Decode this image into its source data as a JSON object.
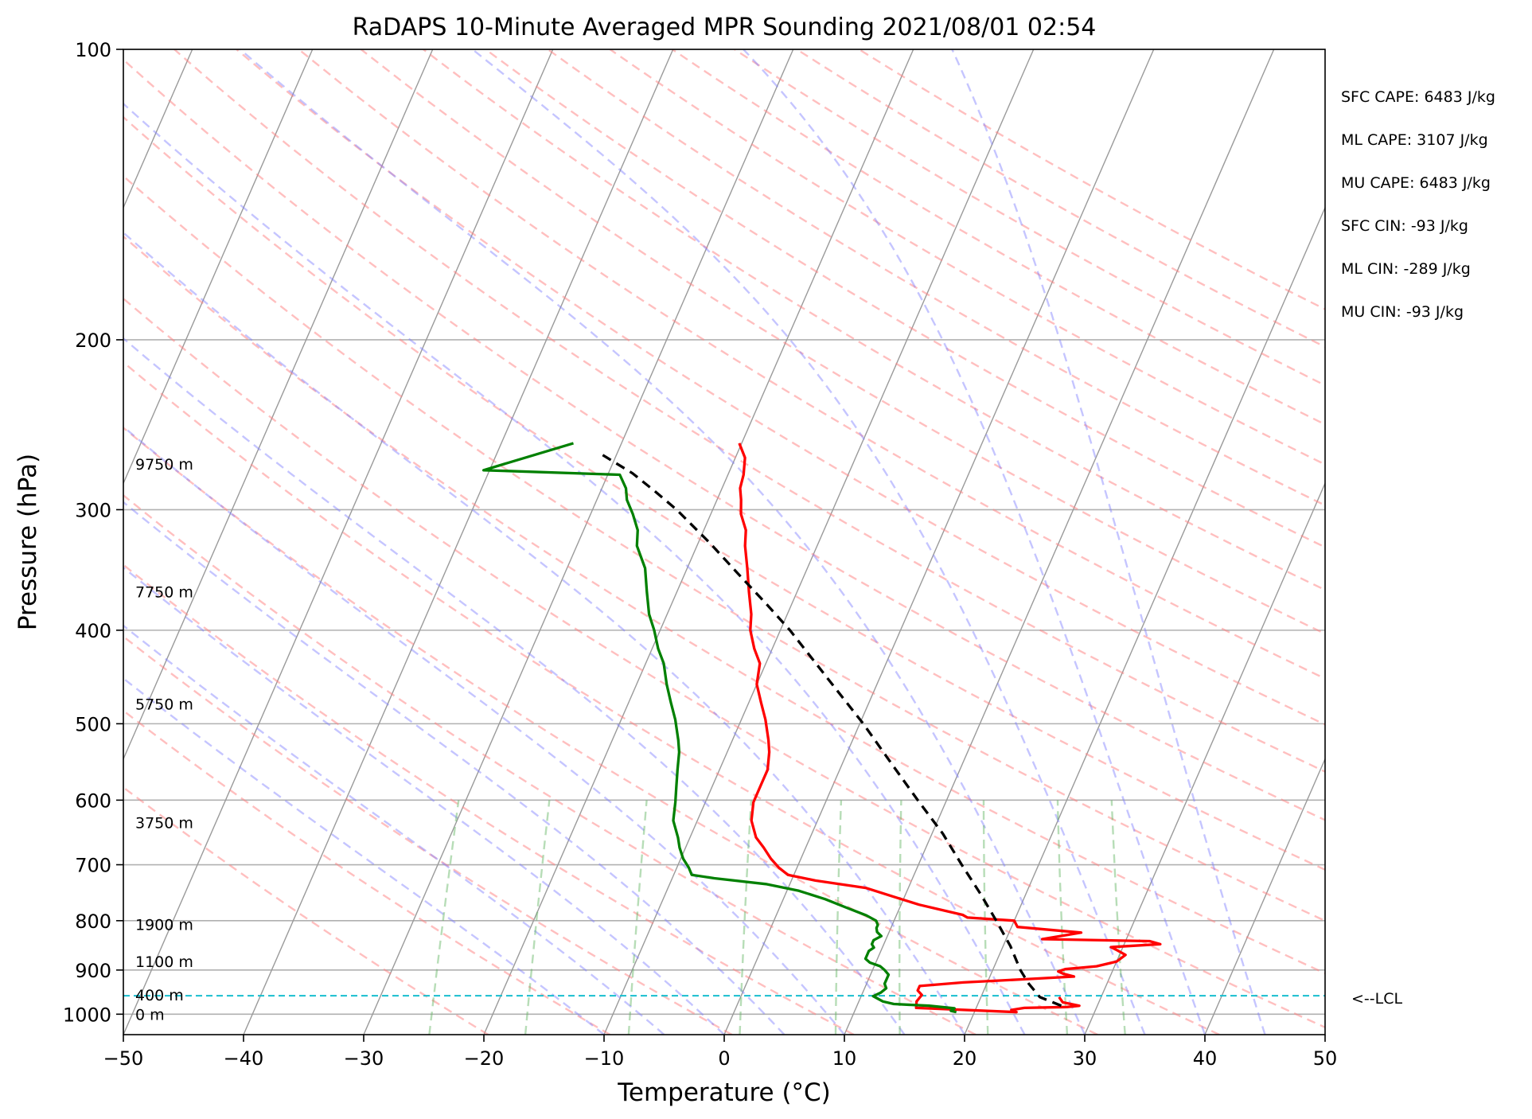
{
  "chart_data": {
    "type": "skew-t",
    "title": "RaDAPS 10-Minute Averaged MPR Sounding 2021/08/01 02:54",
    "xlabel": "Temperature (°C)",
    "ylabel": "Pressure (hPa)",
    "xlim": [
      -50,
      50
    ],
    "ylim": [
      1050,
      100
    ],
    "y_scale": "log",
    "grid": true,
    "x_ticks": [
      -50,
      -40,
      -30,
      -20,
      -10,
      0,
      10,
      20,
      30,
      40,
      50
    ],
    "x_tick_labels": [
      "−50",
      "−40",
      "−30",
      "−20",
      "−10",
      "0",
      "10",
      "20",
      "30",
      "40",
      "50"
    ],
    "y_ticks": [
      1000,
      900,
      800,
      700,
      600,
      500,
      400,
      300,
      200,
      100
    ],
    "y_tick_labels": [
      "1000",
      "900",
      "800",
      "700",
      "600",
      "500",
      "400",
      "300",
      "200",
      "100"
    ],
    "skew_per_decade_C": 35,
    "isotherms_C": [
      -160,
      -150,
      -140,
      -130,
      -120,
      -110,
      -100,
      -90,
      -80,
      -70,
      -60,
      -50,
      -40,
      -30,
      -20,
      -10,
      0,
      10,
      20,
      30,
      40,
      50
    ],
    "dry_adiabats_thetaK": [
      250,
      260,
      270,
      280,
      290,
      300,
      310,
      320,
      330,
      340,
      350,
      360,
      370,
      380,
      390,
      400,
      410,
      420,
      430,
      440,
      450,
      460,
      470,
      480
    ],
    "moist_adiabats_startC": [
      -10,
      -5,
      0,
      5,
      10,
      15,
      20,
      25,
      30,
      35,
      40,
      45
    ],
    "mixing_ratio_lines_gkg": [
      0.5,
      1,
      2,
      4,
      7,
      10,
      16,
      24,
      32
    ],
    "series": [
      {
        "name": "temperature",
        "color": "#ff0000",
        "points": [
          [
            960,
            26.5
          ],
          [
            972,
            27.0
          ],
          [
            980,
            28.5
          ],
          [
            983,
            27.5
          ],
          [
            985,
            24.0
          ],
          [
            990,
            23.0
          ],
          [
            995,
            23.5
          ],
          [
            985,
            15.0
          ],
          [
            970,
            14.8
          ],
          [
            955,
            15.0
          ],
          [
            945,
            14.5
          ],
          [
            935,
            14.5
          ],
          [
            927,
            18.0
          ],
          [
            920,
            23.0
          ],
          [
            914,
            27.0
          ],
          [
            908,
            26.0
          ],
          [
            903,
            25.5
          ],
          [
            898,
            26.0
          ],
          [
            892,
            28.5
          ],
          [
            882,
            30.0
          ],
          [
            868,
            30.5
          ],
          [
            857,
            29.5
          ],
          [
            852,
            29.0
          ],
          [
            846,
            33.0
          ],
          [
            840,
            32.0
          ],
          [
            836,
            23.0
          ],
          [
            823,
            26.0
          ],
          [
            812,
            20.5
          ],
          [
            800,
            20.0
          ],
          [
            794,
            16.0
          ],
          [
            789,
            15.5
          ],
          [
            770,
            11.5
          ],
          [
            755,
            9.0
          ],
          [
            740,
            6.5
          ],
          [
            727,
            2.0
          ],
          [
            717,
            -0.5
          ],
          [
            705,
            -1.5
          ],
          [
            690,
            -2.5
          ],
          [
            672,
            -3.5
          ],
          [
            656,
            -4.5
          ],
          [
            630,
            -5.5
          ],
          [
            603,
            -6.0
          ],
          [
            580,
            -6.0
          ],
          [
            558,
            -6.0
          ],
          [
            535,
            -6.5
          ],
          [
            520,
            -7.0
          ],
          [
            495,
            -8.0
          ],
          [
            475,
            -9.0
          ],
          [
            455,
            -10.0
          ],
          [
            433,
            -10.5
          ],
          [
            418,
            -11.5
          ],
          [
            400,
            -12.5
          ],
          [
            385,
            -13.0
          ],
          [
            365,
            -14.0
          ],
          [
            345,
            -15.0
          ],
          [
            327,
            -16.0
          ],
          [
            315,
            -16.5
          ],
          [
            303,
            -17.5
          ],
          [
            293,
            -18.0
          ],
          [
            285,
            -18.5
          ],
          [
            276,
            -18.7
          ],
          [
            265,
            -19.2
          ],
          [
            256,
            -20.2
          ]
        ]
      },
      {
        "name": "dewpoint",
        "color": "#008000",
        "points": [
          [
            995,
            18.5
          ],
          [
            992,
            18.0
          ],
          [
            986,
            18.2
          ],
          [
            980,
            16.0
          ],
          [
            976,
            13.0
          ],
          [
            970,
            12.0
          ],
          [
            964,
            11.5
          ],
          [
            958,
            11.0
          ],
          [
            950,
            11.5
          ],
          [
            940,
            11.8
          ],
          [
            930,
            11.5
          ],
          [
            920,
            11.5
          ],
          [
            910,
            11.5
          ],
          [
            900,
            11.0
          ],
          [
            892,
            10.5
          ],
          [
            884,
            9.5
          ],
          [
            876,
            9.0
          ],
          [
            868,
            9.0
          ],
          [
            860,
            9.0
          ],
          [
            853,
            9.3
          ],
          [
            846,
            9.0
          ],
          [
            838,
            9.0
          ],
          [
            830,
            9.5
          ],
          [
            822,
            9.0
          ],
          [
            814,
            8.8
          ],
          [
            808,
            8.8
          ],
          [
            800,
            8.5
          ],
          [
            790,
            7.5
          ],
          [
            775,
            5.5
          ],
          [
            760,
            3.5
          ],
          [
            745,
            1.0
          ],
          [
            733,
            -2.0
          ],
          [
            723,
            -6.5
          ],
          [
            717,
            -8.5
          ],
          [
            705,
            -9.0
          ],
          [
            690,
            -9.8
          ],
          [
            672,
            -10.5
          ],
          [
            656,
            -11.0
          ],
          [
            630,
            -12.0
          ],
          [
            603,
            -12.5
          ],
          [
            580,
            -13.0
          ],
          [
            558,
            -13.5
          ],
          [
            535,
            -14.0
          ],
          [
            520,
            -14.5
          ],
          [
            495,
            -15.5
          ],
          [
            475,
            -16.5
          ],
          [
            455,
            -17.5
          ],
          [
            433,
            -18.5
          ],
          [
            418,
            -19.5
          ],
          [
            400,
            -20.5
          ],
          [
            385,
            -21.5
          ],
          [
            365,
            -22.5
          ],
          [
            345,
            -23.5
          ],
          [
            327,
            -25.0
          ],
          [
            315,
            -25.5
          ],
          [
            303,
            -26.5
          ],
          [
            293,
            -27.5
          ],
          [
            285,
            -28.0
          ],
          [
            276,
            -29.0
          ],
          [
            273,
            -40.5
          ],
          [
            256,
            -34.0
          ]
        ]
      },
      {
        "name": "parcel",
        "color": "#000000",
        "points": [
          [
            980,
            27.0
          ],
          [
            960,
            24.9
          ],
          [
            930,
            23.5
          ],
          [
            900,
            22.3
          ],
          [
            850,
            20.6
          ],
          [
            800,
            18.5
          ],
          [
            750,
            16.2
          ],
          [
            700,
            13.6
          ],
          [
            650,
            10.9
          ],
          [
            600,
            7.6
          ],
          [
            550,
            4.1
          ],
          [
            500,
            0.3
          ],
          [
            450,
            -4.2
          ],
          [
            400,
            -9.2
          ],
          [
            375,
            -12.2
          ],
          [
            350,
            -15.5
          ],
          [
            325,
            -19.0
          ],
          [
            300,
            -23.0
          ],
          [
            287,
            -25.5
          ],
          [
            275,
            -28.0
          ],
          [
            262,
            -31.5
          ]
        ]
      }
    ],
    "lcl": {
      "pressure_hPa": 957,
      "label": "<--LCL"
    },
    "height_labels": [
      {
        "text": "0 m",
        "pressure_hPa": 1000
      },
      {
        "text": "400 m",
        "pressure_hPa": 955
      },
      {
        "text": "1100 m",
        "pressure_hPa": 882
      },
      {
        "text": "1900 m",
        "pressure_hPa": 807
      },
      {
        "text": "3750 m",
        "pressure_hPa": 633
      },
      {
        "text": "5750 m",
        "pressure_hPa": 477
      },
      {
        "text": "7750 m",
        "pressure_hPa": 365
      },
      {
        "text": "9750 m",
        "pressure_hPa": 269
      }
    ],
    "indices": [
      "SFC CAPE: 6483 J/kg",
      "ML CAPE: 3107 J/kg",
      "MU CAPE: 6483 J/kg",
      "SFC CIN: -93 J/kg",
      "ML CIN: -289 J/kg",
      "MU CIN: -93 J/kg"
    ]
  }
}
